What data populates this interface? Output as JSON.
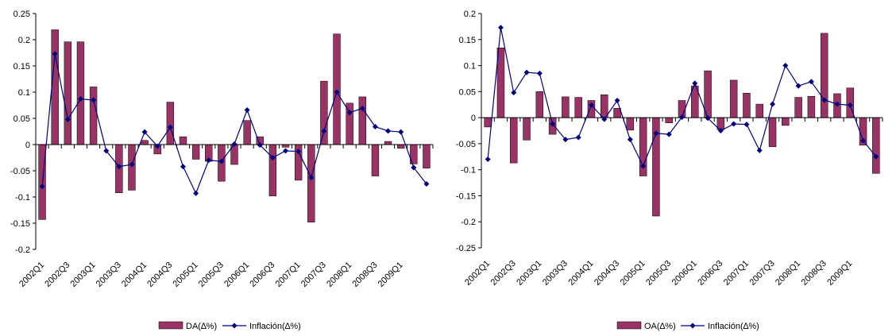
{
  "colors": {
    "bar_fill": "#993366",
    "bar_stroke": "#000000",
    "line": "#000080",
    "axis": "#000000"
  },
  "chart_data": [
    {
      "type": "bar",
      "categories": [
        "2002Q1",
        "2002Q2",
        "2002Q3",
        "2002Q4",
        "2003Q1",
        "2003Q2",
        "2003Q3",
        "2003Q4",
        "2004Q1",
        "2004Q2",
        "2004Q3",
        "2004Q4",
        "2005Q1",
        "2005Q2",
        "2005Q3",
        "2005Q4",
        "2006Q1",
        "2006Q2",
        "2006Q3",
        "2006Q4",
        "2007Q1",
        "2007Q2",
        "2007Q3",
        "2007Q4",
        "2008Q1",
        "2008Q2",
        "2008Q3",
        "2008Q4",
        "2009Q1",
        "2009Q2",
        "2009Q3"
      ],
      "tick_labels": [
        "2002Q1",
        "2002Q3",
        "2003Q1",
        "2003Q3",
        "2004Q1",
        "2004Q3",
        "2005Q1",
        "2005Q3",
        "2006Q1",
        "2006Q3",
        "2007Q1",
        "2007Q3",
        "2008Q1",
        "2008Q3",
        "2009Q1"
      ],
      "ylim": [
        -0.2,
        0.25
      ],
      "yticks": [
        "0.25",
        "0.2",
        "0.15",
        "0.1",
        "0.05",
        "0",
        "-0.05",
        "-0.1",
        "-0.15",
        "-0.2"
      ],
      "grid": false,
      "legend_position": "bottom",
      "series": [
        {
          "name": "DA(∆%)",
          "kind": "bar",
          "values": [
            -0.143,
            0.219,
            0.196,
            0.196,
            0.11,
            0.0,
            -0.092,
            -0.087,
            0.008,
            -0.018,
            0.081,
            0.015,
            -0.028,
            -0.032,
            -0.07,
            -0.038,
            0.046,
            0.015,
            -0.098,
            -0.005,
            -0.068,
            -0.148,
            0.121,
            0.211,
            0.079,
            0.091,
            -0.06,
            0.006,
            -0.007,
            -0.037,
            -0.045
          ]
        },
        {
          "name": "Inflación(∆%)",
          "kind": "line",
          "values": [
            -0.08,
            0.173,
            0.048,
            0.087,
            0.085,
            -0.012,
            -0.042,
            -0.038,
            0.024,
            -0.003,
            0.033,
            -0.042,
            -0.093,
            -0.03,
            -0.032,
            0.001,
            0.066,
            -0.001,
            -0.025,
            -0.012,
            -0.013,
            -0.063,
            0.026,
            0.1,
            0.061,
            0.069,
            0.034,
            0.026,
            0.024,
            -0.044,
            -0.075
          ]
        }
      ]
    },
    {
      "type": "bar",
      "categories": [
        "2002Q1",
        "2002Q2",
        "2002Q3",
        "2002Q4",
        "2003Q1",
        "2003Q2",
        "2003Q3",
        "2003Q4",
        "2004Q1",
        "2004Q2",
        "2004Q3",
        "2004Q4",
        "2005Q1",
        "2005Q2",
        "2005Q3",
        "2005Q4",
        "2006Q1",
        "2006Q2",
        "2006Q3",
        "2006Q4",
        "2007Q1",
        "2007Q2",
        "2007Q3",
        "2007Q4",
        "2008Q1",
        "2008Q2",
        "2008Q3",
        "2008Q4",
        "2009Q1",
        "2009Q2",
        "2009Q3"
      ],
      "tick_labels": [
        "2002Q1",
        "2002Q3",
        "2003Q1",
        "2003Q3",
        "2004Q1",
        "2004Q3",
        "2005Q1",
        "2005Q3",
        "2006Q1",
        "2006Q3",
        "2007Q1",
        "2007Q3",
        "2008Q1",
        "2008Q3",
        "2009Q1"
      ],
      "ylim": [
        -0.25,
        0.2
      ],
      "yticks": [
        "0.2",
        "0.15",
        "0.1",
        "0.05",
        "0",
        "-0.05",
        "-0.1",
        "-0.15",
        "-0.2",
        "-0.25"
      ],
      "grid": false,
      "legend_position": "bottom",
      "series": [
        {
          "name": "OA(∆%)",
          "kind": "bar",
          "values": [
            -0.018,
            0.134,
            -0.087,
            -0.043,
            0.05,
            -0.032,
            0.04,
            0.039,
            0.033,
            0.044,
            0.018,
            -0.024,
            -0.112,
            -0.189,
            -0.01,
            0.033,
            0.061,
            0.09,
            -0.023,
            0.072,
            0.047,
            0.026,
            -0.056,
            -0.015,
            0.039,
            0.041,
            0.162,
            0.046,
            0.057,
            -0.053,
            -0.107
          ]
        },
        {
          "name": "Inflación(∆%)",
          "kind": "line",
          "values": [
            -0.08,
            0.173,
            0.048,
            0.087,
            0.085,
            -0.012,
            -0.042,
            -0.038,
            0.024,
            -0.003,
            0.033,
            -0.042,
            -0.093,
            -0.03,
            -0.032,
            0.001,
            0.066,
            -0.001,
            -0.025,
            -0.012,
            -0.013,
            -0.063,
            0.026,
            0.1,
            0.061,
            0.069,
            0.034,
            0.026,
            0.024,
            -0.044,
            -0.075
          ]
        }
      ]
    }
  ]
}
